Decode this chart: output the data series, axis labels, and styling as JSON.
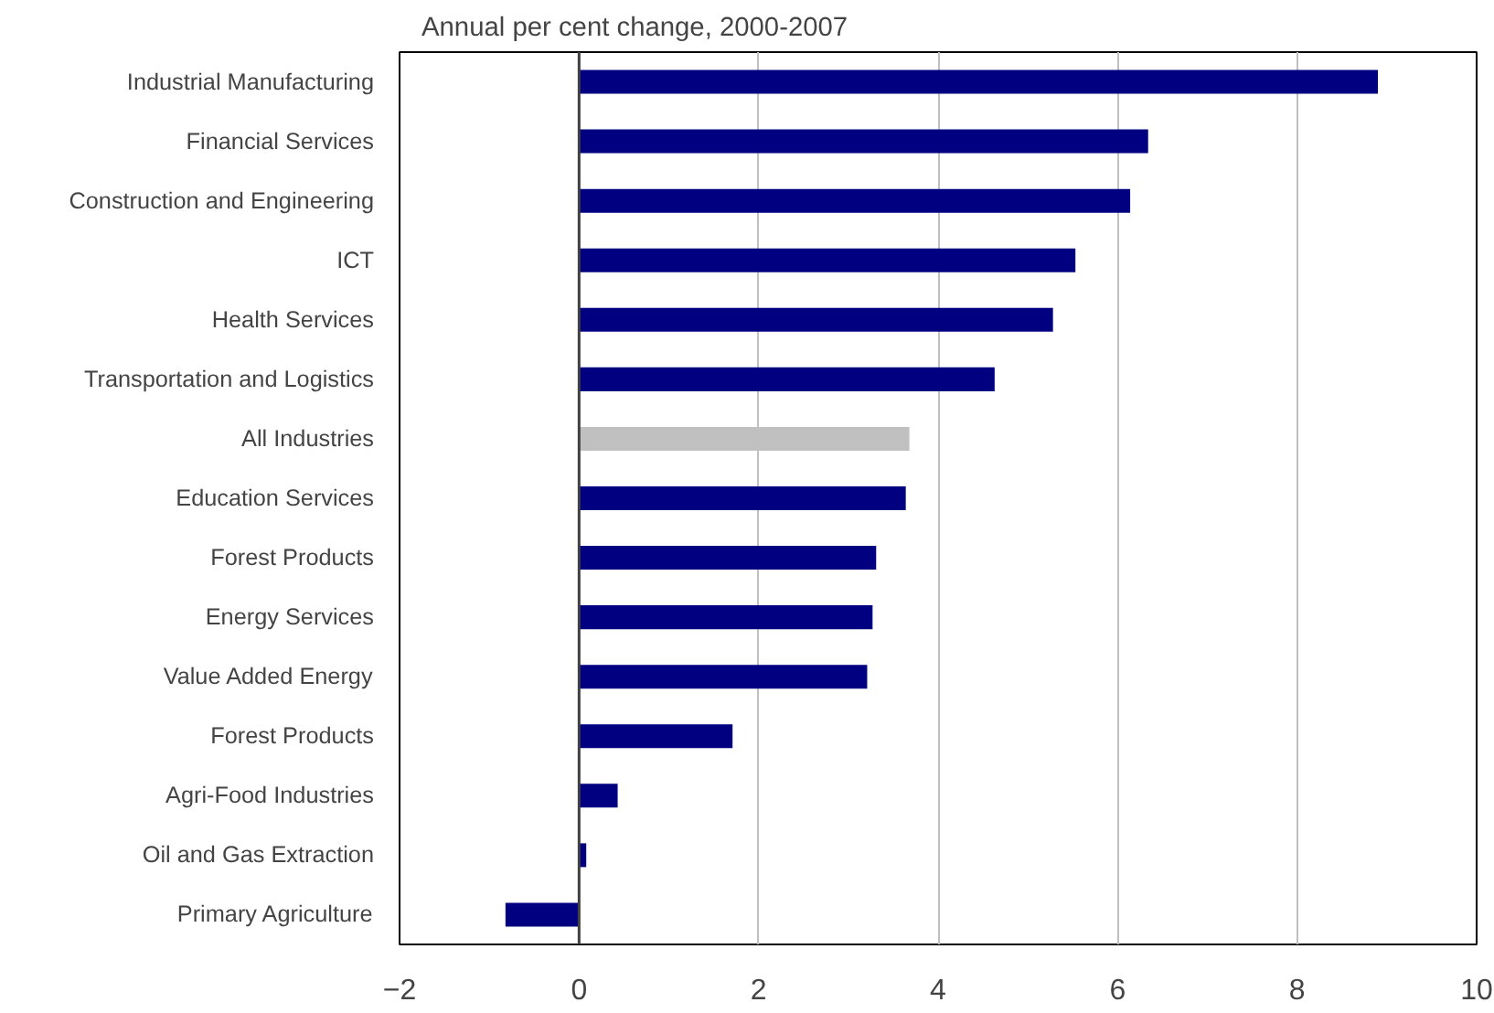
{
  "chart_data": {
    "type": "bar",
    "orientation": "horizontal",
    "title": "Annual per cent change, 2000-2007",
    "categories": [
      "Industrial Manufacturing",
      "Financial Services",
      "Construction and Engineering",
      "ICT",
      "Health Services",
      "Transportation and Logistics",
      "All Industries",
      "Education Services",
      "Forest Products",
      "Energy Services",
      "Value Added Energy",
      "Forest Products",
      "Agri-Food Industries",
      "Oil and Gas Extraction",
      "Primary Agriculture"
    ],
    "values": [
      8.9,
      6.34,
      6.14,
      5.53,
      5.28,
      4.63,
      3.68,
      3.64,
      3.31,
      3.27,
      3.21,
      1.71,
      0.43,
      0.08,
      -0.82
    ],
    "colors": [
      "#000080",
      "#000080",
      "#000080",
      "#000080",
      "#000080",
      "#000080",
      "#c0c0c0",
      "#000080",
      "#000080",
      "#000080",
      "#000080",
      "#000080",
      "#000080",
      "#000080",
      "#000080"
    ],
    "xlim": [
      -2,
      10
    ],
    "xticks": [
      -2,
      0,
      2,
      4,
      6,
      8,
      10
    ],
    "grid": "x"
  }
}
